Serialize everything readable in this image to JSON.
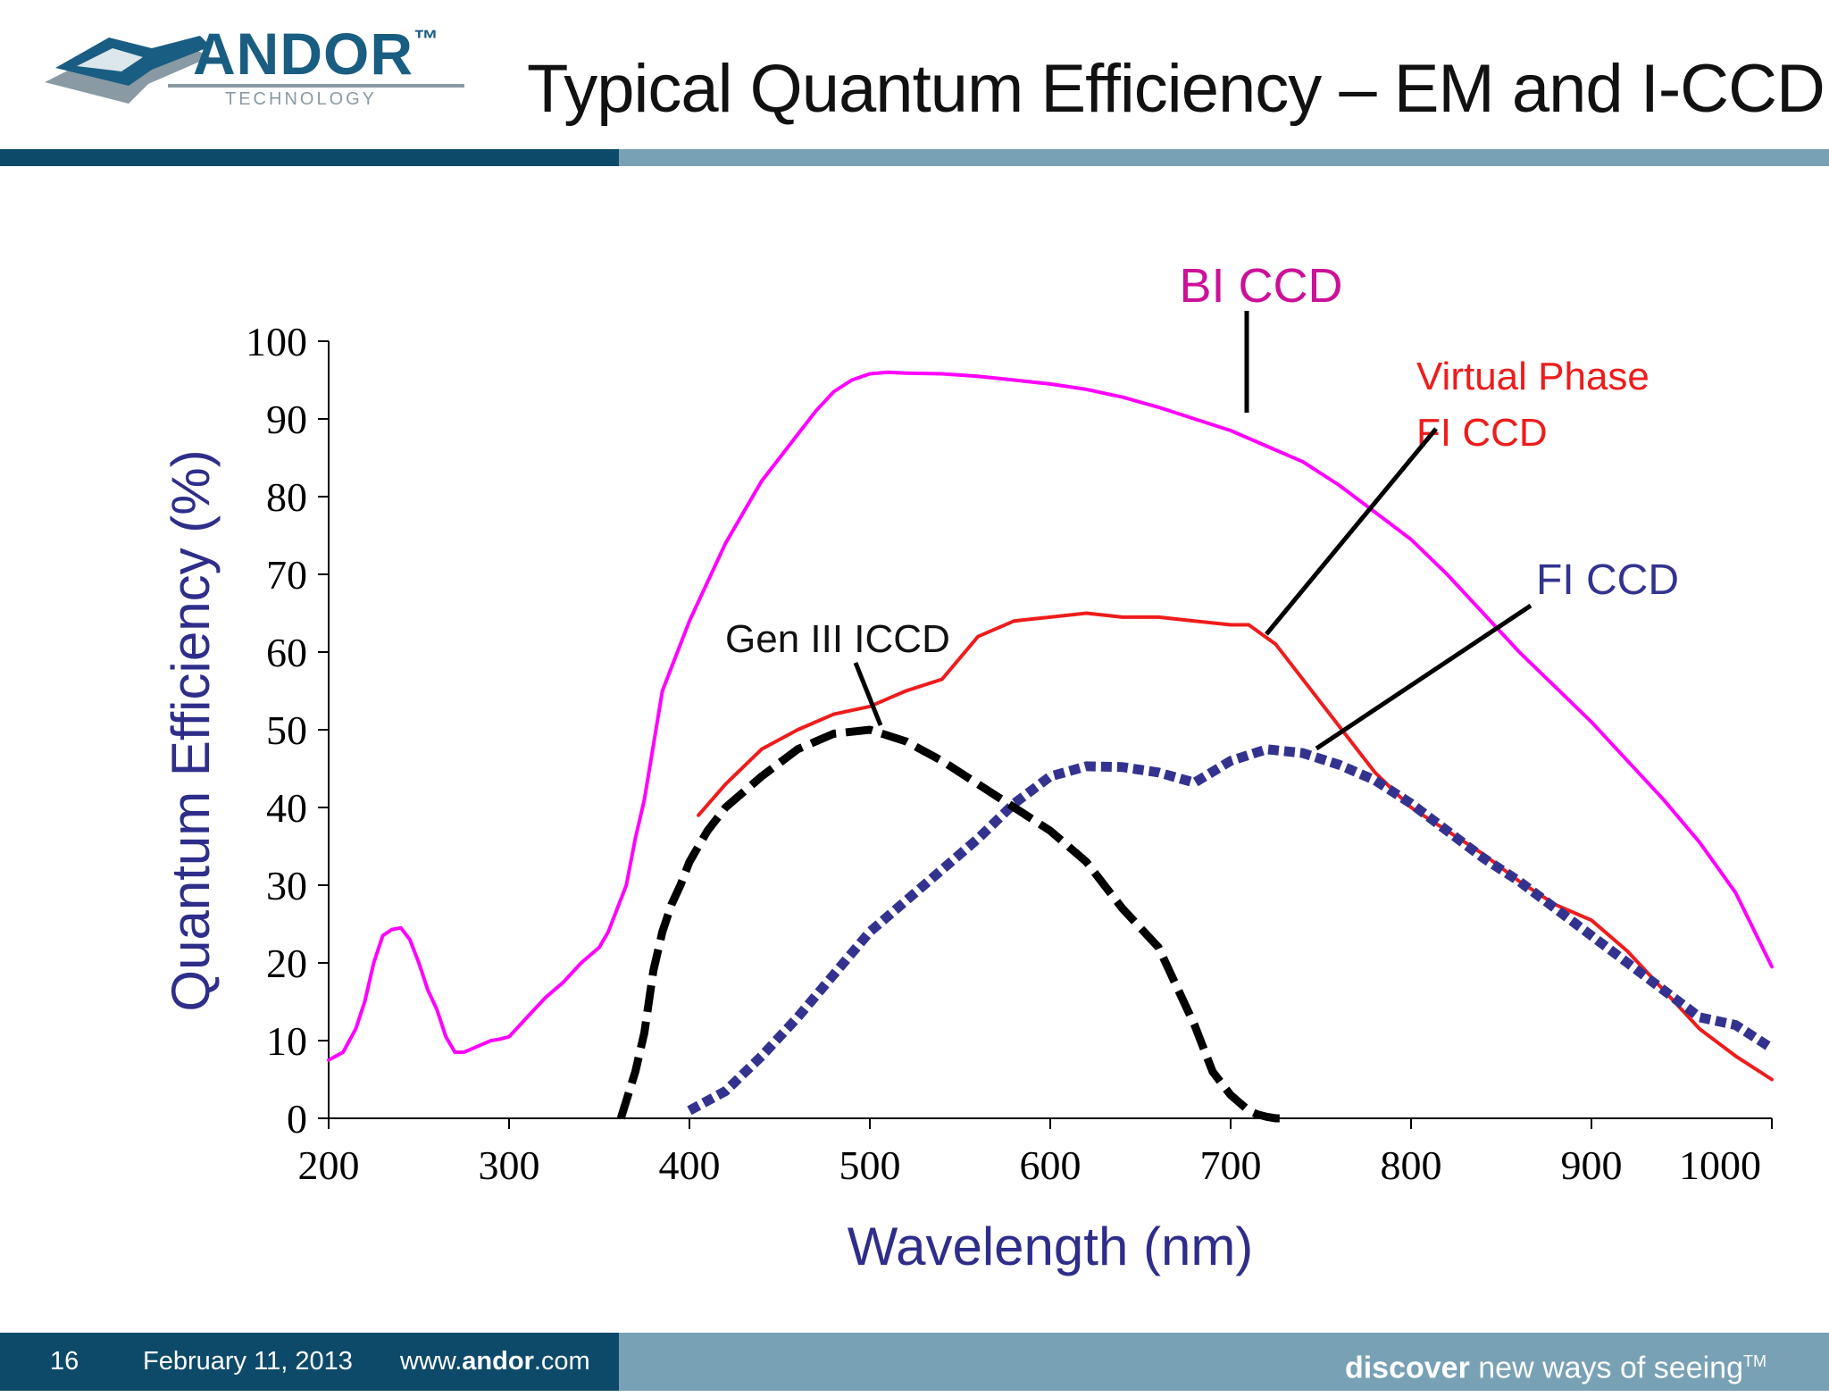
{
  "slide": {
    "title": "Typical Quantum Efficiency – EM and I-CCD"
  },
  "logo": {
    "name": "ANDOR",
    "trademark": "™",
    "subtitle": "TECHNOLOGY"
  },
  "footer": {
    "page_number": "16",
    "date": "February 11, 2013",
    "url_prefix": "www.",
    "url_bold": "andor",
    "url_suffix": ".com",
    "tagline_bold": "discover",
    "tagline_rest": " new ways of seeing",
    "tagline_tm": "TM"
  },
  "colors": {
    "header_dark": "#0d4a6a",
    "header_light": "#78a1b5",
    "logo_blue": "#1a5d82",
    "logo_grey": "#8a9aa4",
    "axis_label": "#2e2e8a",
    "bi_ccd": "#ff00ff",
    "virtual_phase": "#ee1c1c",
    "fi_ccd": "#33338f",
    "gen3": "#000000"
  },
  "chart_data": {
    "type": "line",
    "title": "",
    "xlabel": "Wavelength (nm)",
    "ylabel": "Quantum Efficiency (%)",
    "xlim": [
      200,
      1000
    ],
    "ylim": [
      0,
      100
    ],
    "xticks": [
      200,
      300,
      400,
      500,
      600,
      700,
      800,
      900,
      1000
    ],
    "yticks": [
      0,
      10,
      20,
      30,
      40,
      50,
      60,
      70,
      80,
      90,
      100
    ],
    "grid": false,
    "legend": "none",
    "series": [
      {
        "name": "BI CCD",
        "style": "solid",
        "color": "#ff00ff",
        "x": [
          200,
          208,
          215,
          220,
          225,
          230,
          235,
          240,
          245,
          250,
          255,
          260,
          265,
          270,
          275,
          280,
          285,
          290,
          295,
          300,
          310,
          320,
          330,
          340,
          350,
          355,
          360,
          365,
          370,
          375,
          380,
          385,
          390,
          400,
          410,
          420,
          430,
          440,
          450,
          460,
          470,
          480,
          490,
          500,
          510,
          520,
          540,
          560,
          580,
          600,
          620,
          640,
          660,
          680,
          700,
          720,
          740,
          760,
          780,
          800,
          820,
          840,
          860,
          880,
          900,
          920,
          940,
          960,
          980,
          1000
        ],
        "y": [
          7.5,
          8.5,
          11.5,
          15,
          20,
          23.5,
          24.3,
          24.5,
          23,
          20,
          16.5,
          14,
          10.5,
          8.5,
          8.5,
          9,
          9.5,
          10,
          10.2,
          10.5,
          13,
          15.5,
          17.5,
          20,
          22,
          24,
          27,
          30,
          36,
          41,
          48,
          55,
          58,
          64,
          69,
          74,
          78,
          82,
          85,
          88,
          91,
          93.5,
          95,
          95.8,
          96,
          95.9,
          95.8,
          95.5,
          95,
          94.5,
          93.8,
          92.8,
          91.5,
          90,
          88.5,
          86.5,
          84.5,
          81.5,
          78,
          74.5,
          70,
          65,
          60,
          55.5,
          51,
          46,
          41,
          35.5,
          29,
          19.5
        ]
      },
      {
        "name": "Virtual Phase FI CCD",
        "style": "solid",
        "color": "#ee1c1c",
        "x": [
          405,
          420,
          440,
          460,
          480,
          500,
          510,
          520,
          540,
          560,
          580,
          600,
          620,
          640,
          660,
          680,
          700,
          710,
          725,
          740,
          760,
          780,
          800,
          820,
          840,
          860,
          880,
          900,
          920,
          940,
          960,
          980,
          1000
        ],
        "y": [
          39,
          43,
          47.5,
          50,
          52,
          53,
          54,
          55,
          56.5,
          62,
          64,
          64.5,
          65,
          64.5,
          64.5,
          64,
          63.5,
          63.5,
          61,
          56.5,
          50.5,
          44.5,
          40,
          37,
          34,
          30.5,
          27.5,
          25.5,
          21.5,
          16.5,
          11.5,
          8,
          5
        ]
      },
      {
        "name": "FI CCD",
        "style": "dotted",
        "color": "#33338f",
        "x": [
          400,
          420,
          440,
          460,
          480,
          500,
          520,
          540,
          560,
          580,
          600,
          620,
          640,
          660,
          680,
          700,
          720,
          740,
          760,
          780,
          800,
          820,
          840,
          860,
          880,
          900,
          920,
          940,
          960,
          980,
          1000
        ],
        "y": [
          1,
          3.5,
          8,
          13,
          18.5,
          24,
          28,
          32,
          36,
          40.5,
          44,
          45.3,
          45.2,
          44.5,
          43.2,
          46,
          47.5,
          47,
          45.5,
          43.5,
          40.5,
          37,
          33.5,
          30.5,
          27,
          23.5,
          20,
          16.5,
          13,
          12,
          9
        ]
      },
      {
        "name": "Gen III ICCD",
        "style": "dashed",
        "color": "#000000",
        "x": [
          362,
          366,
          370,
          375,
          380,
          385,
          390,
          395,
          400,
          410,
          420,
          440,
          460,
          480,
          500,
          520,
          540,
          560,
          580,
          600,
          620,
          640,
          660,
          680,
          690,
          700,
          705,
          710,
          715,
          720,
          725,
          730
        ],
        "y": [
          0,
          3,
          6,
          11,
          19,
          24,
          27.5,
          30,
          33,
          37,
          40,
          44,
          47.5,
          49.5,
          50,
          48.5,
          46,
          43,
          40,
          37,
          33,
          27,
          22,
          12,
          6,
          3,
          2,
          1,
          0.5,
          0.2,
          0,
          0
        ]
      }
    ],
    "annotations": [
      {
        "text": "BI CCD",
        "series": "BI CCD",
        "color": "#cc1199"
      },
      {
        "text_lines": [
          "Virtual Phase",
          "FI CCD"
        ],
        "series": "Virtual Phase FI CCD",
        "color": "#ee1c1c"
      },
      {
        "text": "FI CCD",
        "series": "FI CCD",
        "color": "#33338f"
      },
      {
        "text": "Gen III ICCD",
        "series": "Gen III ICCD",
        "color": "#111111"
      }
    ]
  }
}
